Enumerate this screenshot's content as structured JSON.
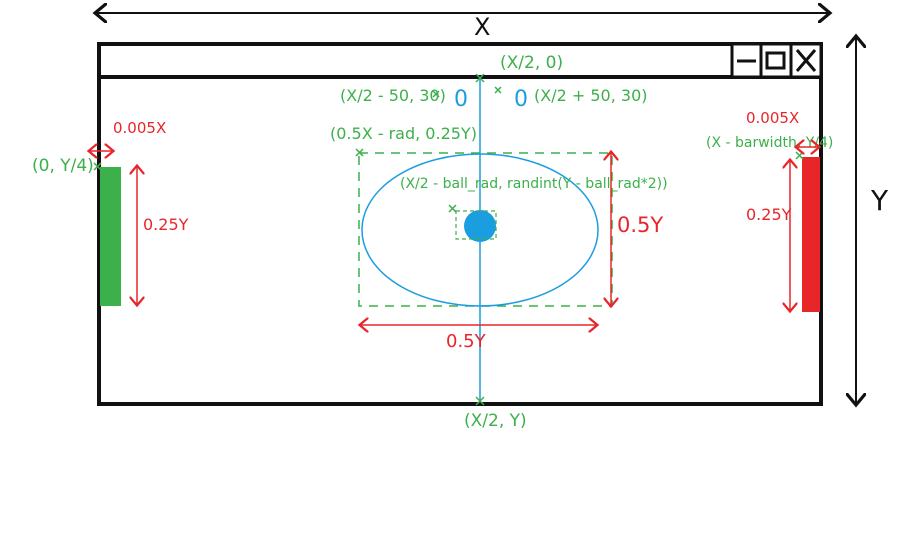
{
  "dimensions": {
    "width_label": "X",
    "height_label": "Y"
  },
  "window": {
    "controls": [
      "minimize-icon",
      "maximize-icon",
      "close-icon"
    ]
  },
  "scores": {
    "left": "0",
    "right": "0"
  },
  "coordinates": {
    "top_center": "(X/2, 0)",
    "bottom_center": "(X/2, Y)",
    "left_score": "(X/2 - 50, 30)",
    "right_score": "(X/2 + 50, 30)",
    "ellipse_corner": "(0.5X - rad, 0.25Y)",
    "ball_start": "(X/2 - ball_rad, randint(Y - ball_rad*2))",
    "left_bar": "(0, Y/4)",
    "right_bar": "(X - barwidth, Y/4)"
  },
  "measurements": {
    "left_bar_width": "0.005X",
    "left_bar_height": "0.25Y",
    "right_bar_width": "0.005X",
    "right_bar_height": "0.25Y",
    "ellipse_width": "0.5Y",
    "ellipse_height": "0.5Y"
  },
  "colors": {
    "green": "#3cb04a",
    "red": "#e8262a",
    "blue": "#1a9ee0",
    "black": "#111111"
  }
}
